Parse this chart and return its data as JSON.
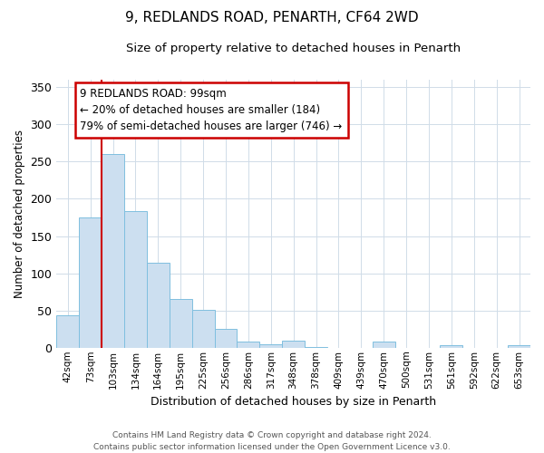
{
  "title": "9, REDLANDS ROAD, PENARTH, CF64 2WD",
  "subtitle": "Size of property relative to detached houses in Penarth",
  "xlabel": "Distribution of detached houses by size in Penarth",
  "ylabel": "Number of detached properties",
  "bar_labels": [
    "42sqm",
    "73sqm",
    "103sqm",
    "134sqm",
    "164sqm",
    "195sqm",
    "225sqm",
    "256sqm",
    "286sqm",
    "317sqm",
    "348sqm",
    "378sqm",
    "409sqm",
    "439sqm",
    "470sqm",
    "500sqm",
    "531sqm",
    "561sqm",
    "592sqm",
    "622sqm",
    "653sqm"
  ],
  "bar_values": [
    43,
    175,
    260,
    183,
    114,
    65,
    51,
    25,
    8,
    5,
    9,
    1,
    0,
    0,
    8,
    0,
    0,
    3,
    0,
    0,
    3
  ],
  "bar_color": "#ccdff0",
  "bar_edgecolor": "#7fbfdf",
  "highlight_index": 2,
  "highlight_color": "#cc0000",
  "annotation_text": "9 REDLANDS ROAD: 99sqm\n← 20% of detached houses are smaller (184)\n79% of semi-detached houses are larger (746) →",
  "annotation_box_edgecolor": "#cc0000",
  "footer_text": "Contains HM Land Registry data © Crown copyright and database right 2024.\nContains public sector information licensed under the Open Government Licence v3.0.",
  "ylim": [
    0,
    360
  ],
  "yticks": [
    0,
    50,
    100,
    150,
    200,
    250,
    300,
    350
  ],
  "background_color": "#ffffff",
  "grid_color": "#d0dce8"
}
